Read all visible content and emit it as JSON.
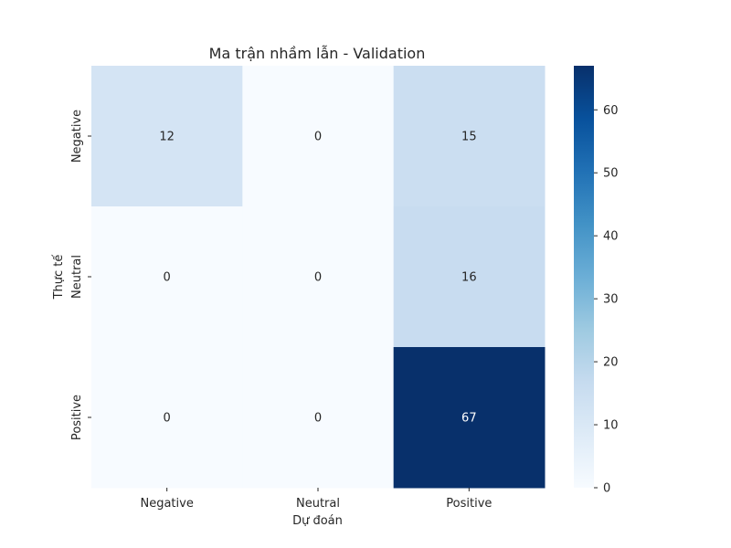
{
  "chart_data": {
    "type": "heatmap",
    "title": "Ma trận nhầm lẫn - Validation",
    "xlabel": "Dự đoán",
    "ylabel": "Thực tế",
    "x_categories": [
      "Negative",
      "Neutral",
      "Positive"
    ],
    "y_categories": [
      "Negative",
      "Neutral",
      "Positive"
    ],
    "values": [
      [
        12,
        0,
        15
      ],
      [
        0,
        0,
        16
      ],
      [
        0,
        0,
        67
      ]
    ],
    "colormap": "Blues",
    "colorbar": {
      "range": [
        0,
        67
      ],
      "ticks": [
        "0",
        "10",
        "20",
        "30",
        "40",
        "50",
        "60"
      ]
    },
    "colors": {
      "low": "#f7fbff",
      "high": "#08306b"
    }
  }
}
